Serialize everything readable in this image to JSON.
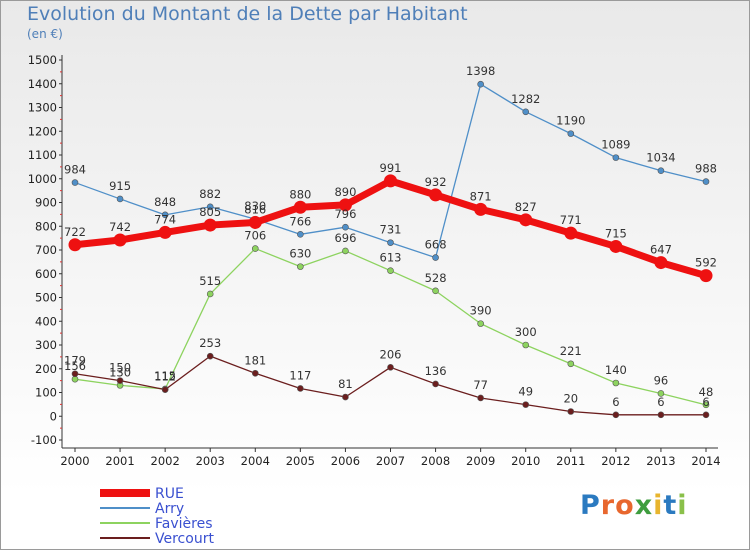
{
  "title": "Evolution du Montant de la Dette par Habitant",
  "subtitle": "(en €)",
  "brand": {
    "text": "Proxiti",
    "letters": [
      "P",
      "r",
      "o",
      "x",
      "i",
      "t",
      "i"
    ],
    "colors": [
      "#2b7ac0",
      "#e8672e",
      "#e8672e",
      "#3e9d3e",
      "#e8b52e",
      "#2b7ac0",
      "#8ac04a"
    ]
  },
  "chart_data": {
    "type": "line",
    "x": [
      "2000",
      "2001",
      "2002",
      "2003",
      "2004",
      "2005",
      "2006",
      "2007",
      "2008",
      "2009",
      "2010",
      "2011",
      "2012",
      "2013",
      "2014"
    ],
    "ylim": [
      -100,
      1500
    ],
    "yticks": [
      -100,
      0,
      100,
      200,
      300,
      400,
      500,
      600,
      700,
      800,
      900,
      1000,
      1100,
      1200,
      1300,
      1400,
      1500
    ],
    "grid": false,
    "legend_position": "bottom-left",
    "series": [
      {
        "name": "Arry",
        "color": "#4f8fc8",
        "values": [
          984,
          915,
          848,
          882,
          830,
          766,
          796,
          731,
          668,
          1398,
          1282,
          1190,
          1089,
          1034,
          988
        ]
      },
      {
        "name": "Favières",
        "color": "#8dd35f",
        "values": [
          156,
          130,
          115,
          515,
          706,
          630,
          696,
          613,
          528,
          390,
          300,
          221,
          140,
          96,
          48
        ]
      },
      {
        "name": "Vercourt",
        "color": "#6b1e1e",
        "values": [
          179,
          150,
          112,
          253,
          181,
          117,
          81,
          206,
          136,
          77,
          49,
          20,
          6,
          6,
          6
        ]
      },
      {
        "name": "RUE",
        "color": "#ee1111",
        "values": [
          722,
          742,
          774,
          805,
          816,
          880,
          890,
          991,
          932,
          871,
          827,
          771,
          715,
          647,
          592
        ]
      }
    ],
    "legend": [
      "RUE",
      "Arry",
      "Favières",
      "Vercourt"
    ]
  }
}
